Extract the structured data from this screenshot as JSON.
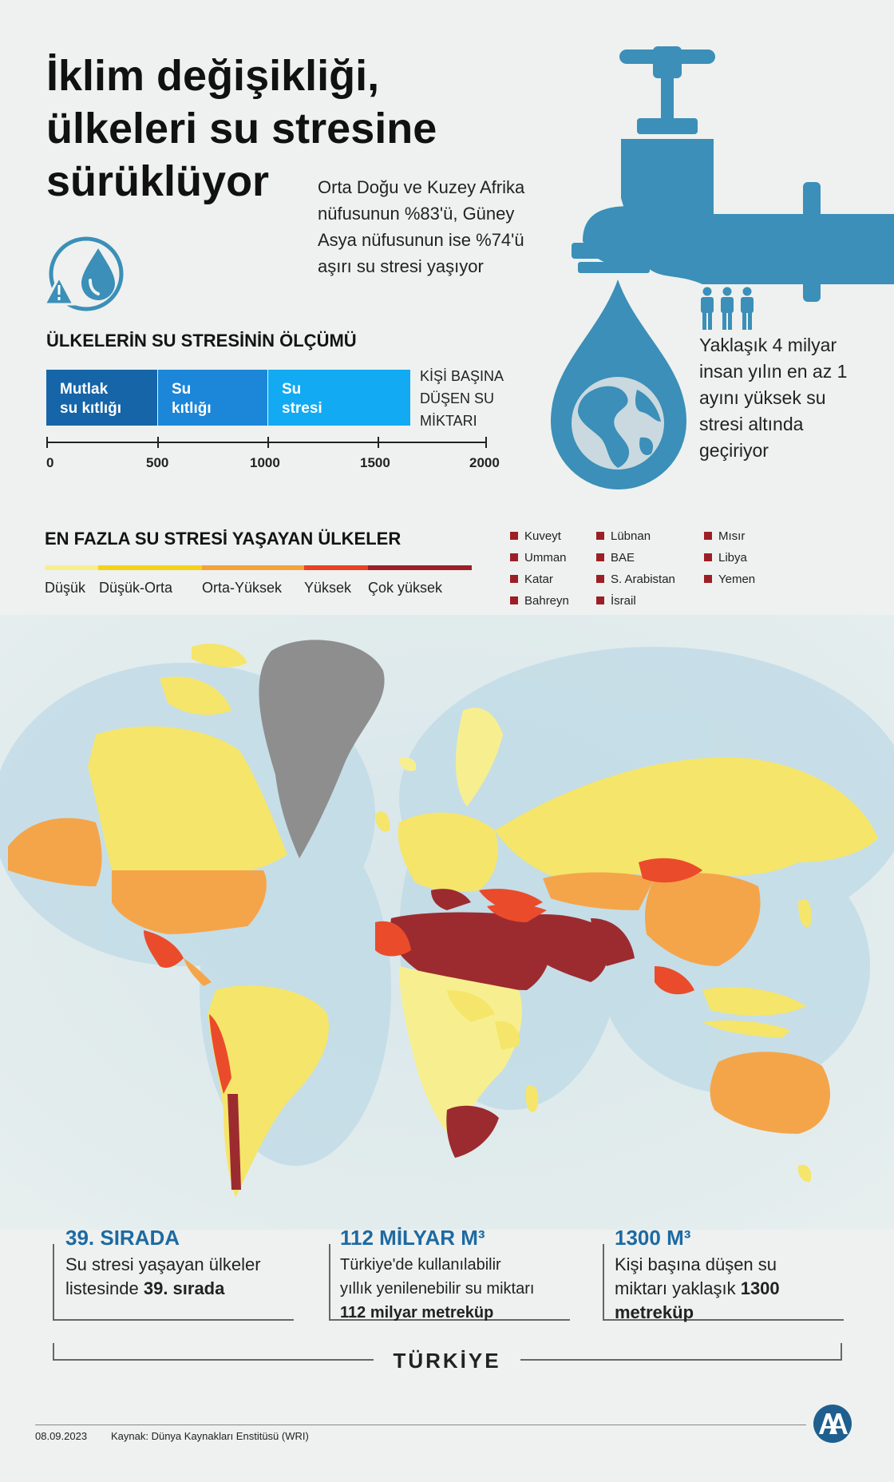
{
  "header": {
    "title_lines": [
      "İklim değişikliği,",
      "ülkeleri su stresine",
      "sürüklüyor"
    ],
    "subtitle": "Orta Doğu ve Kuzey Afrika nüfusunun %83'ü, Güney Asya nüfusunun ise %74'ü aşırı su stresi yaşıyor"
  },
  "measure": {
    "heading": "ÜLKELERİN SU STRESİNİN ÖLÇÜMÜ",
    "segments": [
      {
        "line1": "Mutlak",
        "line2": "su kıtlığı",
        "color": "#1565a8"
      },
      {
        "line1": "Su",
        "line2": "kıtlığı",
        "color": "#1c86d8"
      },
      {
        "line1": "Su",
        "line2": "stresi",
        "color": "#12aaf3"
      }
    ],
    "axis_ticks": [
      "0",
      "500",
      "1000",
      "1500",
      "2000"
    ],
    "per_capita_label": [
      "KİŞİ BAŞINA",
      "DÜŞEN SU",
      "MİKTARI"
    ]
  },
  "people_note": "Yaklaşık 4 milyar insan yılın en az 1 ayını yüksek su stresi altında geçiriyor",
  "stress_legend": {
    "heading": "EN FAZLA SU STRESİ YAŞAYAN ÜLKELER",
    "levels": [
      {
        "label": "Düşük",
        "color": "#f7ef8f"
      },
      {
        "label": "Düşük-Orta",
        "color": "#f5d21a"
      },
      {
        "label": "Orta-Yüksek",
        "color": "#f4a23a"
      },
      {
        "label": "Yüksek",
        "color": "#ea4023"
      },
      {
        "label": "Çok yüksek",
        "color": "#9c1f26"
      }
    ],
    "top_countries": [
      "Kuveyt",
      "Lübnan",
      "Mısır",
      "Umman",
      "BAE",
      "Libya",
      "Katar",
      "S. Arabistan",
      "Yemen",
      "Bahreyn",
      "İsrail"
    ]
  },
  "turkey_stats": [
    {
      "title": "39. SIRADA",
      "lines": [
        "Su stresi yaşayan ülkeler",
        "listesinde "
      ],
      "bold_tail": "39. sırada"
    },
    {
      "title": "112 MİLYAR M³",
      "lines": [
        "Türkiye'de kullanılabilir",
        "yıllık yenilenebilir su miktarı"
      ],
      "bold_tail": "112 milyar metreküp"
    },
    {
      "title": "1300 M³",
      "lines": [
        "Kişi başına düşen su",
        "miktarı yaklaşık "
      ],
      "bold_tail": "1300",
      "bold_tail2": "metreküp"
    }
  ],
  "turkey_label": "TÜRKİYE",
  "footer": {
    "date": "08.09.2023",
    "source": "Kaynak: Dünya Kaynakları Enstitüsü (WRI)",
    "logo_text": "AA"
  },
  "colors": {
    "brand_blue": "#3b8fb8",
    "stat_blue": "#1e6aa2"
  }
}
